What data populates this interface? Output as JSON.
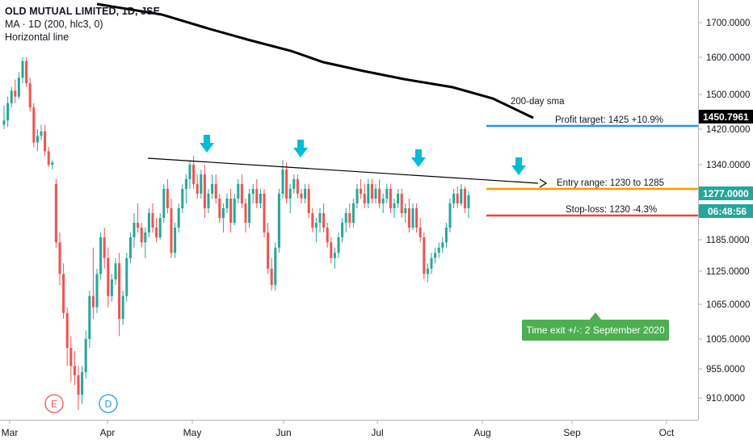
{
  "legend": {
    "title": "OLD MUTUAL LIMITED, 1D, JSE",
    "indicator": "MA · 1D (200, hlc3, 0)",
    "drawing": "Horizontal line"
  },
  "annotations": {
    "sma": "200-day sma",
    "profit_target": "Profit target: 1425 +10.9%",
    "entry_range": "Entry range: 1230 to 1285",
    "stop_loss": "Stop-loss: 1230 -4.3%",
    "time_exit": "Time exit +/-: 2 September 2020"
  },
  "badges": {
    "sma_value": "1450.7961",
    "last_price": "1277.0000",
    "countdown": "06:48:56"
  },
  "event_markers": [
    "E",
    "D"
  ],
  "colors": {
    "up": "#26a69a",
    "down": "#ef5350",
    "profit_line": "#2196f3",
    "entry_line": "#ff9800",
    "stop_line": "#f44336",
    "sma_line": "#000000",
    "callout": "#4caf50",
    "arrow": "#00bcd4"
  },
  "chart_data": {
    "type": "candlestick",
    "y_ticks": [
      "1700.0000",
      "1600.0000",
      "1500.0000",
      "1420.0000",
      "1340.0000",
      "1185.0000",
      "1125.0000",
      "1065.0000",
      "1005.0000",
      "955.0000",
      "910.0000"
    ],
    "x_ticks": [
      "Mar",
      "Apr",
      "May",
      "Jun",
      "Jul",
      "Aug",
      "Sep",
      "Oct"
    ],
    "ohlc": [
      {
        "o": 1430,
        "h": 1475,
        "l": 1420,
        "c": 1440
      },
      {
        "o": 1440,
        "h": 1495,
        "l": 1425,
        "c": 1480
      },
      {
        "o": 1480,
        "h": 1520,
        "l": 1470,
        "c": 1510
      },
      {
        "o": 1510,
        "h": 1540,
        "l": 1480,
        "c": 1495
      },
      {
        "o": 1495,
        "h": 1560,
        "l": 1490,
        "c": 1545
      },
      {
        "o": 1545,
        "h": 1600,
        "l": 1530,
        "c": 1590
      },
      {
        "o": 1590,
        "h": 1600,
        "l": 1520,
        "c": 1530
      },
      {
        "o": 1530,
        "h": 1545,
        "l": 1460,
        "c": 1470
      },
      {
        "o": 1470,
        "h": 1480,
        "l": 1380,
        "c": 1390
      },
      {
        "o": 1390,
        "h": 1420,
        "l": 1370,
        "c": 1405
      },
      {
        "o": 1405,
        "h": 1430,
        "l": 1395,
        "c": 1415
      },
      {
        "o": 1415,
        "h": 1430,
        "l": 1360,
        "c": 1370
      },
      {
        "o": 1370,
        "h": 1380,
        "l": 1335,
        "c": 1340
      },
      {
        "o": 1340,
        "h": 1350,
        "l": 1330,
        "c": 1345
      },
      {
        "o": 1300,
        "h": 1310,
        "l": 1170,
        "c": 1180
      },
      {
        "o": 1180,
        "h": 1200,
        "l": 1100,
        "c": 1120
      },
      {
        "o": 1120,
        "h": 1140,
        "l": 1040,
        "c": 1050
      },
      {
        "o": 1050,
        "h": 1060,
        "l": 960,
        "c": 990
      },
      {
        "o": 990,
        "h": 1010,
        "l": 935,
        "c": 960
      },
      {
        "o": 960,
        "h": 985,
        "l": 930,
        "c": 945
      },
      {
        "o": 945,
        "h": 960,
        "l": 890,
        "c": 915
      },
      {
        "o": 915,
        "h": 960,
        "l": 900,
        "c": 950
      },
      {
        "o": 950,
        "h": 1020,
        "l": 940,
        "c": 1005
      },
      {
        "o": 1005,
        "h": 1090,
        "l": 990,
        "c": 1080
      },
      {
        "o": 1080,
        "h": 1170,
        "l": 1040,
        "c": 1060
      },
      {
        "o": 1060,
        "h": 1130,
        "l": 1050,
        "c": 1120
      },
      {
        "o": 1120,
        "h": 1200,
        "l": 1110,
        "c": 1190
      },
      {
        "o": 1190,
        "h": 1210,
        "l": 1130,
        "c": 1150
      },
      {
        "o": 1150,
        "h": 1170,
        "l": 1060,
        "c": 1080
      },
      {
        "o": 1080,
        "h": 1120,
        "l": 1070,
        "c": 1110
      },
      {
        "o": 1110,
        "h": 1150,
        "l": 1100,
        "c": 1140
      },
      {
        "o": 1140,
        "h": 1160,
        "l": 1010,
        "c": 1040
      },
      {
        "o": 1040,
        "h": 1090,
        "l": 1030,
        "c": 1080
      },
      {
        "o": 1080,
        "h": 1160,
        "l": 1070,
        "c": 1150
      },
      {
        "o": 1150,
        "h": 1200,
        "l": 1140,
        "c": 1190
      },
      {
        "o": 1190,
        "h": 1240,
        "l": 1170,
        "c": 1220
      },
      {
        "o": 1220,
        "h": 1260,
        "l": 1200,
        "c": 1210
      },
      {
        "o": 1210,
        "h": 1220,
        "l": 1170,
        "c": 1180
      },
      {
        "o": 1180,
        "h": 1210,
        "l": 1150,
        "c": 1200
      },
      {
        "o": 1200,
        "h": 1250,
        "l": 1190,
        "c": 1240
      },
      {
        "o": 1240,
        "h": 1260,
        "l": 1200,
        "c": 1210
      },
      {
        "o": 1210,
        "h": 1230,
        "l": 1180,
        "c": 1190
      },
      {
        "o": 1190,
        "h": 1240,
        "l": 1185,
        "c": 1230
      },
      {
        "o": 1230,
        "h": 1300,
        "l": 1220,
        "c": 1290
      },
      {
        "o": 1290,
        "h": 1310,
        "l": 1240,
        "c": 1250
      },
      {
        "o": 1250,
        "h": 1270,
        "l": 1150,
        "c": 1160
      },
      {
        "o": 1160,
        "h": 1220,
        "l": 1150,
        "c": 1210
      },
      {
        "o": 1210,
        "h": 1260,
        "l": 1200,
        "c": 1250
      },
      {
        "o": 1250,
        "h": 1300,
        "l": 1240,
        "c": 1290
      },
      {
        "o": 1290,
        "h": 1320,
        "l": 1260,
        "c": 1310
      },
      {
        "o": 1310,
        "h": 1350,
        "l": 1290,
        "c": 1340
      },
      {
        "o": 1340,
        "h": 1360,
        "l": 1290,
        "c": 1300
      },
      {
        "o": 1300,
        "h": 1320,
        "l": 1270,
        "c": 1280
      },
      {
        "o": 1280,
        "h": 1330,
        "l": 1270,
        "c": 1320
      },
      {
        "o": 1320,
        "h": 1340,
        "l": 1230,
        "c": 1250
      },
      {
        "o": 1250,
        "h": 1290,
        "l": 1240,
        "c": 1280
      },
      {
        "o": 1280,
        "h": 1320,
        "l": 1270,
        "c": 1300
      },
      {
        "o": 1300,
        "h": 1320,
        "l": 1260,
        "c": 1270
      },
      {
        "o": 1270,
        "h": 1280,
        "l": 1220,
        "c": 1230
      },
      {
        "o": 1230,
        "h": 1260,
        "l": 1200,
        "c": 1250
      },
      {
        "o": 1250,
        "h": 1280,
        "l": 1240,
        "c": 1270
      },
      {
        "o": 1270,
        "h": 1290,
        "l": 1200,
        "c": 1220
      },
      {
        "o": 1220,
        "h": 1280,
        "l": 1215,
        "c": 1270
      },
      {
        "o": 1270,
        "h": 1310,
        "l": 1260,
        "c": 1300
      },
      {
        "o": 1300,
        "h": 1320,
        "l": 1250,
        "c": 1260
      },
      {
        "o": 1260,
        "h": 1270,
        "l": 1200,
        "c": 1220
      },
      {
        "o": 1220,
        "h": 1290,
        "l": 1210,
        "c": 1280
      },
      {
        "o": 1280,
        "h": 1300,
        "l": 1260,
        "c": 1290
      },
      {
        "o": 1290,
        "h": 1310,
        "l": 1250,
        "c": 1260
      },
      {
        "o": 1260,
        "h": 1290,
        "l": 1250,
        "c": 1280
      },
      {
        "o": 1280,
        "h": 1290,
        "l": 1190,
        "c": 1200
      },
      {
        "o": 1200,
        "h": 1220,
        "l": 1120,
        "c": 1130
      },
      {
        "o": 1130,
        "h": 1150,
        "l": 1090,
        "c": 1100
      },
      {
        "o": 1100,
        "h": 1180,
        "l": 1090,
        "c": 1170
      },
      {
        "o": 1170,
        "h": 1290,
        "l": 1160,
        "c": 1280
      },
      {
        "o": 1280,
        "h": 1350,
        "l": 1270,
        "c": 1330
      },
      {
        "o": 1330,
        "h": 1345,
        "l": 1260,
        "c": 1270
      },
      {
        "o": 1270,
        "h": 1300,
        "l": 1240,
        "c": 1290
      },
      {
        "o": 1290,
        "h": 1320,
        "l": 1280,
        "c": 1310
      },
      {
        "o": 1310,
        "h": 1320,
        "l": 1270,
        "c": 1280
      },
      {
        "o": 1280,
        "h": 1290,
        "l": 1260,
        "c": 1270
      },
      {
        "o": 1270,
        "h": 1300,
        "l": 1260,
        "c": 1290
      },
      {
        "o": 1290,
        "h": 1300,
        "l": 1230,
        "c": 1240
      },
      {
        "o": 1240,
        "h": 1250,
        "l": 1200,
        "c": 1210
      },
      {
        "o": 1210,
        "h": 1230,
        "l": 1180,
        "c": 1220
      },
      {
        "o": 1220,
        "h": 1250,
        "l": 1200,
        "c": 1240
      },
      {
        "o": 1240,
        "h": 1260,
        "l": 1200,
        "c": 1210
      },
      {
        "o": 1210,
        "h": 1220,
        "l": 1170,
        "c": 1180
      },
      {
        "o": 1180,
        "h": 1190,
        "l": 1140,
        "c": 1150
      },
      {
        "o": 1150,
        "h": 1170,
        "l": 1130,
        "c": 1160
      },
      {
        "o": 1160,
        "h": 1200,
        "l": 1150,
        "c": 1190
      },
      {
        "o": 1190,
        "h": 1230,
        "l": 1180,
        "c": 1220
      },
      {
        "o": 1220,
        "h": 1250,
        "l": 1200,
        "c": 1240
      },
      {
        "o": 1240,
        "h": 1260,
        "l": 1210,
        "c": 1220
      },
      {
        "o": 1220,
        "h": 1270,
        "l": 1210,
        "c": 1260
      },
      {
        "o": 1260,
        "h": 1300,
        "l": 1250,
        "c": 1290
      },
      {
        "o": 1290,
        "h": 1310,
        "l": 1270,
        "c": 1280
      },
      {
        "o": 1280,
        "h": 1300,
        "l": 1250,
        "c": 1260
      },
      {
        "o": 1260,
        "h": 1310,
        "l": 1250,
        "c": 1300
      },
      {
        "o": 1300,
        "h": 1310,
        "l": 1260,
        "c": 1270
      },
      {
        "o": 1270,
        "h": 1300,
        "l": 1260,
        "c": 1290
      },
      {
        "o": 1290,
        "h": 1310,
        "l": 1250,
        "c": 1260
      },
      {
        "o": 1260,
        "h": 1280,
        "l": 1240,
        "c": 1270
      },
      {
        "o": 1270,
        "h": 1300,
        "l": 1260,
        "c": 1290
      },
      {
        "o": 1290,
        "h": 1300,
        "l": 1240,
        "c": 1250
      },
      {
        "o": 1250,
        "h": 1270,
        "l": 1230,
        "c": 1260
      },
      {
        "o": 1260,
        "h": 1290,
        "l": 1250,
        "c": 1280
      },
      {
        "o": 1280,
        "h": 1290,
        "l": 1230,
        "c": 1240
      },
      {
        "o": 1240,
        "h": 1260,
        "l": 1220,
        "c": 1250
      },
      {
        "o": 1250,
        "h": 1270,
        "l": 1200,
        "c": 1210
      },
      {
        "o": 1210,
        "h": 1260,
        "l": 1205,
        "c": 1250
      },
      {
        "o": 1250,
        "h": 1260,
        "l": 1200,
        "c": 1210
      },
      {
        "o": 1210,
        "h": 1230,
        "l": 1180,
        "c": 1190
      },
      {
        "o": 1190,
        "h": 1200,
        "l": 1110,
        "c": 1120
      },
      {
        "o": 1120,
        "h": 1140,
        "l": 1105,
        "c": 1130
      },
      {
        "o": 1130,
        "h": 1160,
        "l": 1120,
        "c": 1150
      },
      {
        "o": 1150,
        "h": 1170,
        "l": 1140,
        "c": 1160
      },
      {
        "o": 1160,
        "h": 1180,
        "l": 1150,
        "c": 1170
      },
      {
        "o": 1170,
        "h": 1190,
        "l": 1160,
        "c": 1180
      },
      {
        "o": 1180,
        "h": 1220,
        "l": 1170,
        "c": 1210
      },
      {
        "o": 1210,
        "h": 1270,
        "l": 1200,
        "c": 1260
      },
      {
        "o": 1260,
        "h": 1290,
        "l": 1250,
        "c": 1280
      },
      {
        "o": 1280,
        "h": 1295,
        "l": 1250,
        "c": 1260
      },
      {
        "o": 1260,
        "h": 1300,
        "l": 1255,
        "c": 1290
      },
      {
        "o": 1290,
        "h": 1295,
        "l": 1240,
        "c": 1250
      },
      {
        "o": 1250,
        "h": 1285,
        "l": 1230,
        "c": 1277
      }
    ]
  }
}
